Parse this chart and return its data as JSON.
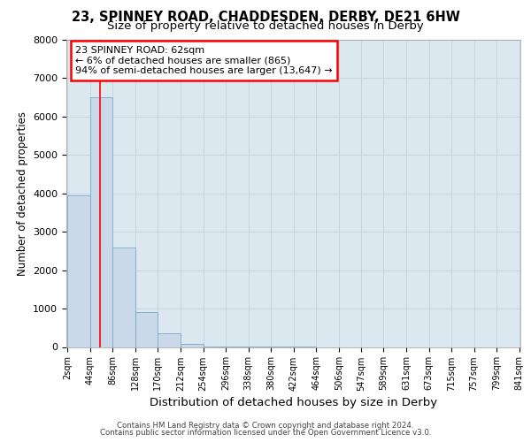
{
  "title1": "23, SPINNEY ROAD, CHADDESDEN, DERBY, DE21 6HW",
  "title2": "Size of property relative to detached houses in Derby",
  "xlabel": "Distribution of detached houses by size in Derby",
  "ylabel": "Number of detached properties",
  "footnote1": "Contains HM Land Registry data © Crown copyright and database right 2024.",
  "footnote2": "Contains public sector information licensed under the Open Government Licence v3.0.",
  "annotation_line1": "23 SPINNEY ROAD: 62sqm",
  "annotation_line2": "← 6% of detached houses are smaller (865)",
  "annotation_line3": "94% of semi-detached houses are larger (13,647) →",
  "bar_edges": [
    2,
    44,
    86,
    128,
    170,
    212,
    254,
    296,
    338,
    380,
    422,
    464,
    506,
    547,
    589,
    631,
    673,
    715,
    757,
    799,
    841
  ],
  "bar_heights": [
    3950,
    6500,
    2600,
    900,
    350,
    80,
    20,
    10,
    5,
    2,
    1,
    0,
    0,
    0,
    0,
    0,
    0,
    0,
    0,
    0
  ],
  "bar_color": "#c9d9ea",
  "bar_edgecolor": "#7fa8c8",
  "grid_color": "#c8d4e0",
  "background_color": "#dce8f0",
  "red_line_x": 62,
  "ylim": [
    0,
    8000
  ],
  "title1_fontsize": 10.5,
  "title2_fontsize": 9.5,
  "tick_label_fontsize": 7,
  "ylabel_fontsize": 8.5,
  "xlabel_fontsize": 9.5,
  "annotation_fontsize": 8
}
